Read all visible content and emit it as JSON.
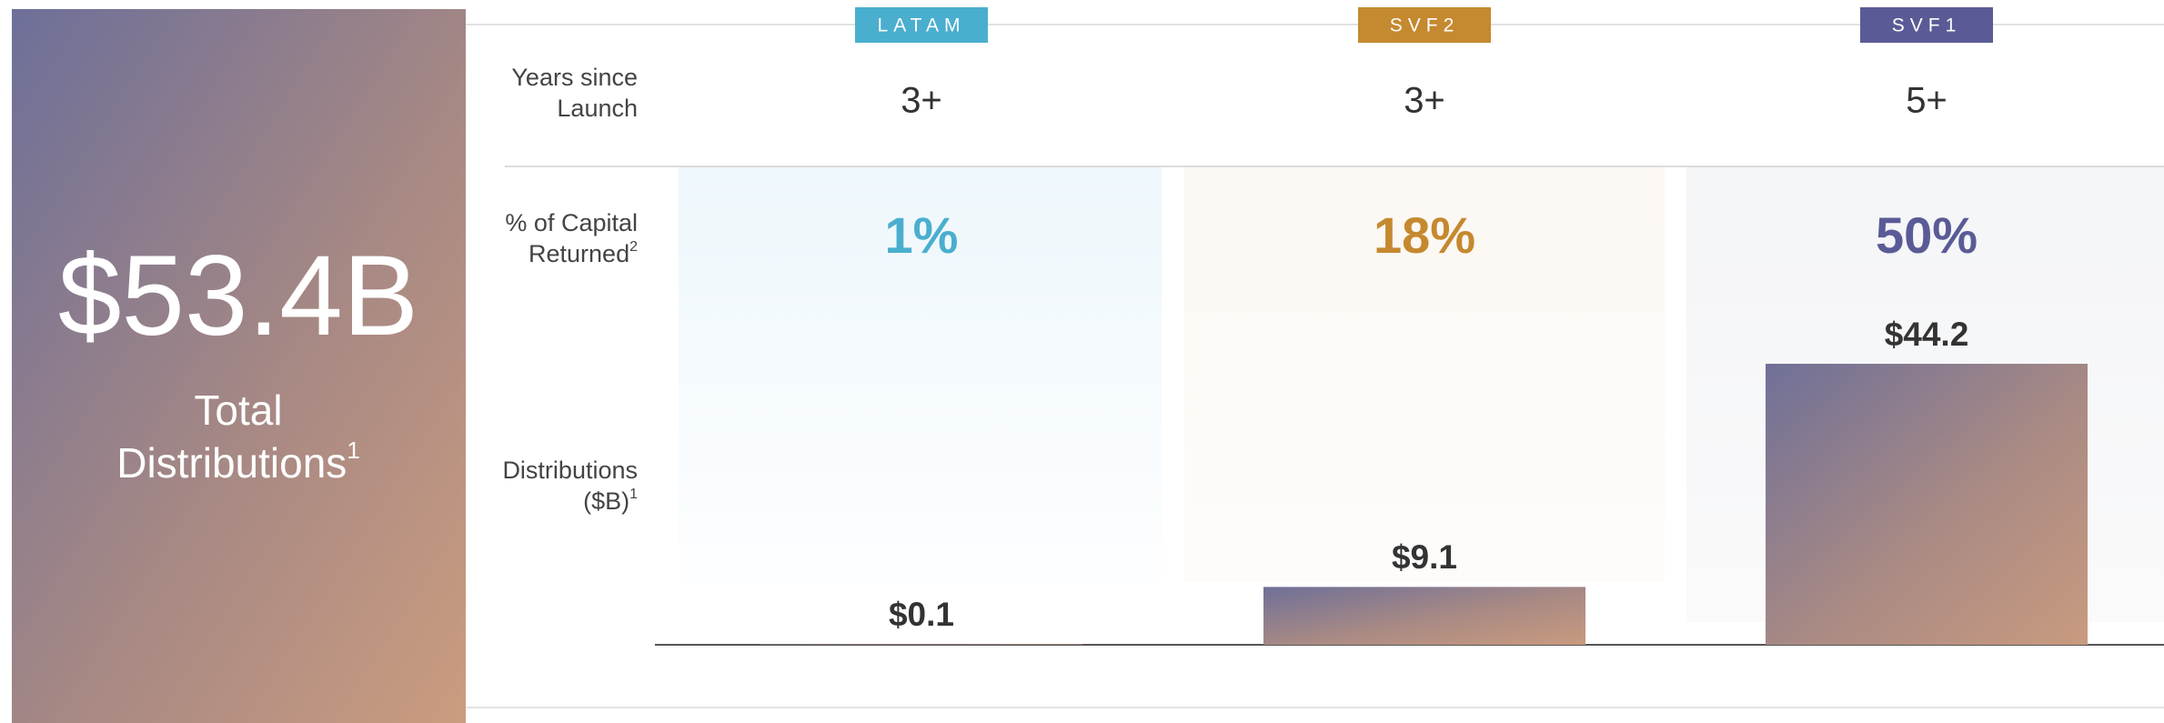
{
  "chart_data": {
    "type": "bar",
    "total": "$53.4B",
    "total_label": [
      "Total",
      "Distributions"
    ],
    "total_note": "1",
    "categories": [
      "LATAM",
      "SVF2",
      "SVF1"
    ],
    "tag_colors": [
      "#4aaecf",
      "#c5892f",
      "#5a5b96"
    ],
    "rows": {
      "years": {
        "label": [
          "Years since",
          "Launch"
        ],
        "values": [
          "3+",
          "3+",
          "5+"
        ]
      },
      "capital": {
        "label": [
          "% of Capital",
          "Returned"
        ],
        "note": "2",
        "values": [
          "1%",
          "18%",
          "50%"
        ]
      },
      "distributions": {
        "label": [
          "Distributions",
          "($B)"
        ],
        "note": "1"
      }
    },
    "values": [
      0.1,
      9.1,
      44.2
    ],
    "value_labels": [
      "$0.1",
      "$9.1",
      "$44.2"
    ]
  }
}
